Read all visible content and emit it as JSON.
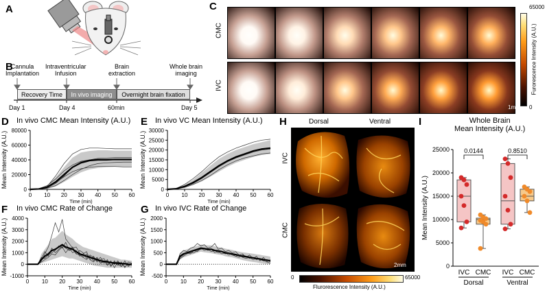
{
  "panels": {
    "A": "A",
    "B": "B",
    "C": "C",
    "D": "D",
    "E": "E",
    "F": "F",
    "G": "G",
    "H": "H",
    "I": "I"
  },
  "timeline": {
    "events": [
      {
        "label": "Cannula\nImplantation",
        "day": "Day 1"
      },
      {
        "label": "Intraventricular\nInfusion",
        "day": "Day 4"
      },
      {
        "label": "Brain\nextraction",
        "day": "60min"
      },
      {
        "label": "Whole brain\nimaging",
        "day": "Day 5"
      }
    ],
    "phases": {
      "recovery": "Recovery Time",
      "invivo": "In vivo imaging",
      "fixation": "Overnight brain fixation"
    }
  },
  "panel_c": {
    "rows": [
      "CMC",
      "IVC"
    ],
    "colorbar_max": "65000",
    "colorbar_min": "0",
    "colorbar_label": "Furorescence Intensity (A.U.)",
    "scale": "1mm",
    "intensities": {
      "CMC": [
        0.05,
        0.12,
        0.35,
        0.55,
        0.7,
        0.78
      ],
      "IVC": [
        0.05,
        0.18,
        0.55,
        0.8,
        0.92,
        0.97
      ]
    }
  },
  "panel_h": {
    "dorsal": "Dorsal",
    "ventral": "Ventral",
    "rows": [
      "IVC",
      "CMC"
    ],
    "scale": "2mm",
    "cb_min": "0",
    "cb_max": "65000",
    "cb_label": "Flurorescence Intensity (A.U.)"
  },
  "chart_data": [
    {
      "id": "D",
      "type": "line",
      "title": "In vivo CMC Mean Intensity (A.U.)",
      "xlabel": "Time (min)",
      "ylabel": "Mean Intensity (A.U.)",
      "xlim": [
        0,
        60
      ],
      "ylim": [
        0,
        80000
      ],
      "xticks": [
        "0",
        "10",
        "20",
        "30",
        "40",
        "50",
        "60"
      ],
      "yticks": [
        "0",
        "20000",
        "40000",
        "60000",
        "80000"
      ],
      "x": [
        0,
        5,
        10,
        15,
        20,
        25,
        30,
        35,
        40,
        45,
        50,
        55,
        60
      ],
      "mean": [
        0,
        500,
        3000,
        10000,
        20000,
        30000,
        36000,
        39000,
        40000,
        40000,
        40500,
        40500,
        40500
      ],
      "sd_low": [
        0,
        0,
        1000,
        4000,
        10000,
        17000,
        23000,
        27000,
        29000,
        30000,
        30500,
        31000,
        31000
      ],
      "sd_high": [
        0,
        1000,
        5000,
        16000,
        30000,
        43000,
        50000,
        52000,
        53000,
        53000,
        52500,
        52500,
        52500
      ],
      "traces": [
        [
          0,
          200,
          4000,
          18000,
          35000,
          48000,
          54000,
          56000,
          56000,
          55500,
          55000,
          55000,
          55000
        ],
        [
          0,
          400,
          2000,
          8000,
          18000,
          30000,
          37000,
          40000,
          41000,
          41000,
          41000,
          41000,
          41000
        ],
        [
          0,
          300,
          1500,
          5000,
          12000,
          20000,
          27000,
          32000,
          35000,
          36000,
          36500,
          37000,
          37000
        ],
        [
          0,
          600,
          3000,
          9000,
          17000,
          24000,
          28000,
          30000,
          31000,
          31000,
          31000,
          30500,
          30500
        ],
        [
          0,
          800,
          5000,
          14000,
          25000,
          33000,
          38000,
          40000,
          42000,
          42500,
          43000,
          43000,
          43000
        ]
      ]
    },
    {
      "id": "E",
      "type": "line",
      "title": "In vivo VC Mean Intensity (A.U.)",
      "xlabel": "Time (min)",
      "ylabel": "Mean Intensity (A.U.)",
      "xlim": [
        0,
        60
      ],
      "ylim": [
        0,
        30000
      ],
      "xticks": [
        "0",
        "10",
        "20",
        "30",
        "40",
        "50",
        "60"
      ],
      "yticks": [
        "0",
        "5000",
        "10000",
        "15000",
        "20000",
        "25000",
        "30000"
      ],
      "x": [
        0,
        5,
        10,
        15,
        20,
        25,
        30,
        35,
        40,
        45,
        50,
        55,
        60
      ],
      "mean": [
        0,
        300,
        1500,
        3500,
        6000,
        9000,
        12000,
        14500,
        16500,
        18000,
        19500,
        20500,
        21000
      ],
      "sd_low": [
        0,
        100,
        800,
        2200,
        4000,
        6500,
        9000,
        11500,
        13500,
        15000,
        16500,
        17500,
        18000
      ],
      "sd_high": [
        0,
        500,
        2300,
        5000,
        8500,
        12000,
        15500,
        18000,
        20000,
        21500,
        23000,
        24000,
        25000
      ],
      "traces": [
        [
          0,
          400,
          2500,
          5500,
          9000,
          13000,
          16500,
          19000,
          21000,
          22500,
          24000,
          25000,
          25500
        ],
        [
          0,
          300,
          1600,
          3500,
          6000,
          9000,
          12000,
          14500,
          16500,
          18000,
          19500,
          20500,
          21000
        ],
        [
          0,
          200,
          1000,
          2500,
          4500,
          7000,
          10000,
          12500,
          14500,
          16000,
          17000,
          18000,
          18500
        ],
        [
          0,
          250,
          1300,
          3000,
          5500,
          8500,
          11500,
          14000,
          16000,
          17500,
          19000,
          20000,
          20500
        ]
      ]
    },
    {
      "id": "F",
      "type": "line",
      "title": "In vivo CMC Rate of Change",
      "xlabel": "Time (min)",
      "ylabel": "Mean Intensity (A.U.)",
      "xlim": [
        0,
        60
      ],
      "ylim": [
        -1000,
        4000
      ],
      "xticks": [
        "0",
        "10",
        "20",
        "30",
        "40",
        "50",
        "60"
      ],
      "yticks": [
        "-1000",
        "0",
        "1000",
        "2000",
        "3000",
        "4000"
      ],
      "x": [
        0,
        3,
        6,
        8,
        10,
        12,
        14,
        16,
        18,
        20,
        22,
        24,
        26,
        28,
        30,
        32,
        34,
        36,
        38,
        40,
        42,
        44,
        46,
        48,
        50,
        52,
        54,
        56,
        58,
        60
      ],
      "mean": [
        0,
        0,
        0,
        400,
        700,
        900,
        1200,
        1300,
        1500,
        1700,
        1500,
        1400,
        1300,
        1100,
        900,
        800,
        700,
        600,
        500,
        400,
        300,
        250,
        200,
        150,
        100,
        100,
        50,
        50,
        0,
        0
      ],
      "sd_low": [
        0,
        0,
        0,
        100,
        200,
        300,
        400,
        500,
        600,
        700,
        600,
        500,
        500,
        400,
        300,
        200,
        100,
        0,
        -100,
        -150,
        -200,
        -250,
        -300,
        -300,
        -300,
        -300,
        -300,
        -300,
        -300,
        -300
      ],
      "sd_high": [
        0,
        0,
        0,
        900,
        1300,
        1700,
        2200,
        2300,
        2600,
        2900,
        2600,
        2400,
        2200,
        1900,
        1700,
        1500,
        1400,
        1300,
        1200,
        1100,
        1000,
        900,
        800,
        700,
        600,
        500,
        400,
        400,
        350,
        300
      ],
      "traces": [
        [
          0,
          0,
          0,
          300,
          900,
          1500,
          2500,
          3600,
          2800,
          3900,
          2200,
          1800,
          1400,
          1500,
          1000,
          600,
          900,
          400,
          200,
          500,
          100,
          300,
          -100,
          200,
          0,
          300,
          -200,
          100,
          -100,
          0
        ],
        [
          0,
          0,
          0,
          600,
          500,
          800,
          1000,
          1200,
          1600,
          1400,
          1900,
          1200,
          1500,
          900,
          1200,
          1000,
          500,
          800,
          600,
          300,
          600,
          100,
          400,
          -200,
          300,
          -100,
          200,
          -300,
          200,
          100
        ],
        [
          0,
          0,
          0,
          200,
          400,
          600,
          900,
          800,
          1200,
          1500,
          1000,
          1400,
          1000,
          1200,
          700,
          900,
          1100,
          400,
          700,
          200,
          400,
          500,
          0,
          300,
          -300,
          200,
          100,
          -200,
          0,
          -100
        ],
        [
          0,
          0,
          0,
          500,
          1100,
          700,
          1400,
          1000,
          1300,
          1600,
          1400,
          1200,
          1300,
          900,
          800,
          600,
          400,
          700,
          300,
          600,
          100,
          200,
          300,
          -100,
          200,
          0,
          -200,
          300,
          -200,
          100
        ]
      ]
    },
    {
      "id": "G",
      "type": "line",
      "title": "In vivo IVC Rate of Change",
      "xlabel": "Time (min)",
      "ylabel": "Mean Intensity (A.U.)",
      "xlim": [
        0,
        60
      ],
      "ylim": [
        -500,
        2000
      ],
      "xticks": [
        "0",
        "10",
        "20",
        "30",
        "40",
        "50",
        "60"
      ],
      "yticks": [
        "-500",
        "0",
        "500",
        "1000",
        "1500",
        "2000"
      ],
      "x": [
        0,
        3,
        6,
        8,
        10,
        12,
        14,
        16,
        18,
        20,
        22,
        24,
        26,
        28,
        30,
        32,
        34,
        36,
        38,
        40,
        42,
        44,
        46,
        48,
        50,
        52,
        54,
        56,
        58,
        60
      ],
      "mean": [
        0,
        0,
        0,
        350,
        450,
        500,
        550,
        600,
        650,
        700,
        680,
        650,
        650,
        600,
        580,
        550,
        500,
        480,
        450,
        420,
        380,
        350,
        330,
        300,
        280,
        250,
        230,
        200,
        180,
        150
      ],
      "sd_low": [
        0,
        0,
        0,
        200,
        300,
        350,
        400,
        450,
        500,
        550,
        520,
        500,
        480,
        450,
        420,
        400,
        350,
        320,
        300,
        260,
        220,
        180,
        150,
        120,
        100,
        80,
        50,
        30,
        10,
        0
      ],
      "sd_high": [
        0,
        0,
        0,
        500,
        600,
        650,
        700,
        750,
        800,
        850,
        840,
        820,
        820,
        780,
        750,
        720,
        680,
        650,
        620,
        580,
        550,
        520,
        500,
        480,
        460,
        430,
        410,
        380,
        360,
        330
      ],
      "traces": [
        [
          0,
          0,
          0,
          450,
          600,
          550,
          700,
          750,
          900,
          800,
          850,
          700,
          750,
          900,
          650,
          700,
          550,
          600,
          500,
          550,
          400,
          450,
          300,
          400,
          250,
          350,
          150,
          300,
          100,
          200
        ],
        [
          0,
          0,
          0,
          300,
          400,
          500,
          450,
          600,
          550,
          700,
          600,
          650,
          550,
          600,
          500,
          550,
          450,
          500,
          400,
          350,
          300,
          400,
          350,
          250,
          300,
          200,
          250,
          150,
          200,
          100
        ],
        [
          0,
          0,
          0,
          250,
          350,
          450,
          500,
          500,
          600,
          650,
          700,
          600,
          650,
          500,
          550,
          450,
          500,
          400,
          450,
          350,
          400,
          300,
          250,
          300,
          200,
          250,
          200,
          150,
          100,
          50
        ]
      ]
    },
    {
      "id": "I",
      "type": "bar",
      "title": "Whole Brain\nMean Intensity (A.U.)",
      "ylabel": "Mean Intensity (A.U.)",
      "ylim": [
        0,
        25000
      ],
      "yticks": [
        "0",
        "5000",
        "10000",
        "15000",
        "20000",
        "25000"
      ],
      "categories": [
        "IVC",
        "CMC",
        "IVC",
        "CMC"
      ],
      "groups": [
        "Dorsal",
        "Ventral"
      ],
      "pvalues": [
        "0.0144",
        "0.8510"
      ],
      "series": [
        {
          "name": "IVC Dorsal",
          "color": "#d42a2a",
          "box": [
            8200,
            9500,
            15000,
            18500,
            19000
          ],
          "points": [
            19000,
            18500,
            17500,
            15000,
            13000,
            9500,
            8200
          ]
        },
        {
          "name": "CMC Dorsal",
          "color": "#f08a2a",
          "box": [
            3800,
            9000,
            10000,
            10300,
            11000
          ],
          "points": [
            11000,
            10500,
            10200,
            9800,
            9500,
            9000,
            3800
          ]
        },
        {
          "name": "IVC Ventral",
          "color": "#d42a2a",
          "box": [
            8000,
            9000,
            14000,
            22000,
            23000
          ],
          "points": [
            23000,
            22000,
            19000,
            15000,
            12000,
            9000,
            8000
          ]
        },
        {
          "name": "CMC Ventral",
          "color": "#f08a2a",
          "box": [
            11500,
            14000,
            15000,
            16500,
            17000
          ],
          "points": [
            17000,
            16500,
            16000,
            15000,
            14000,
            11500
          ]
        }
      ]
    }
  ]
}
